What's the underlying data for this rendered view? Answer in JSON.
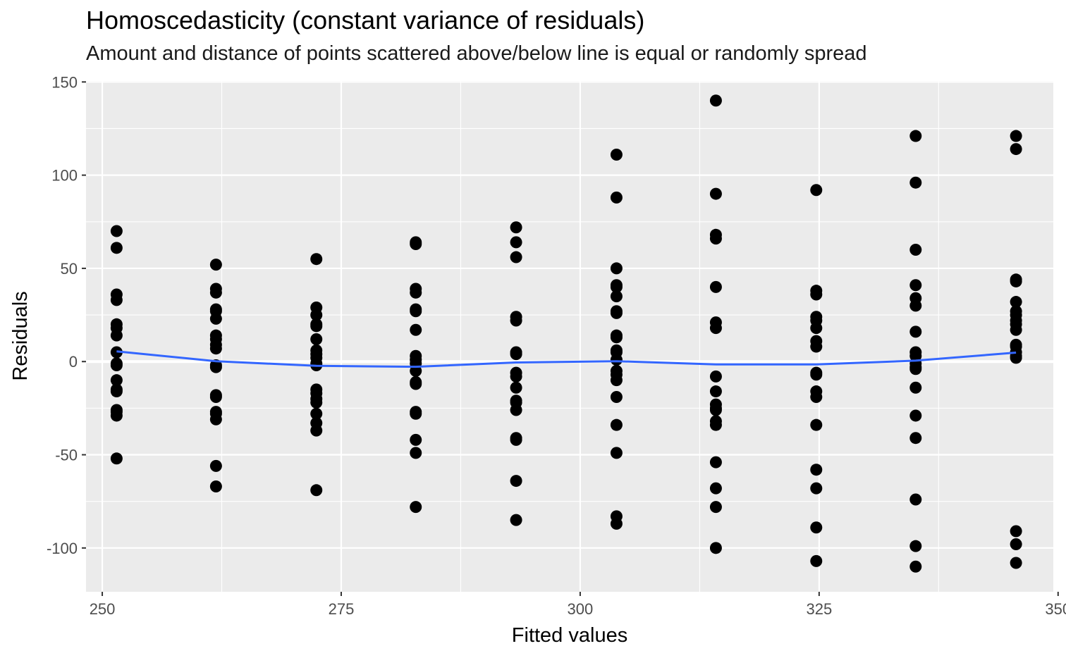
{
  "chart_data": {
    "type": "scatter",
    "title": "Homoscedasticity (constant variance of residuals)",
    "subtitle": "Amount and distance of points scattered above/below line is equal or randomly spread",
    "xlabel": "Fitted values",
    "ylabel": "Residuals",
    "xlim": [
      248.3,
      349.5
    ],
    "ylim": [
      -123.5,
      150.5
    ],
    "x_ticks": [
      250,
      275,
      300,
      325,
      350
    ],
    "y_ticks": [
      150,
      100,
      50,
      0,
      -50,
      -100
    ],
    "x_tick_labels": [
      "250",
      "275",
      "300",
      "325",
      "350"
    ],
    "y_tick_labels": [
      "150",
      "100",
      "50",
      "0",
      "-50",
      "-100"
    ],
    "grid": true,
    "reference_line_y": 0,
    "colors": {
      "panel": "#ebebeb",
      "grid": "#ffffff",
      "points": "#000000",
      "smooth": "#3366ff"
    },
    "points": [
      {
        "x": 251.5,
        "y": [
          70,
          61,
          36,
          33,
          20,
          18,
          14,
          5,
          -1,
          -2,
          -10,
          -15,
          -16,
          -26,
          -27,
          -29,
          -52
        ]
      },
      {
        "x": 261.9,
        "y": [
          52,
          39,
          37,
          28,
          27,
          23,
          14,
          12,
          9,
          7,
          -2,
          -3,
          -18,
          -19,
          -27,
          -28,
          -31,
          -56,
          -67
        ]
      },
      {
        "x": 272.4,
        "y": [
          55,
          29,
          25,
          20,
          19,
          12,
          6,
          4,
          2,
          -1,
          -2,
          -15,
          -17,
          -20,
          -22,
          -28,
          -33,
          -37,
          -69
        ]
      },
      {
        "x": 282.8,
        "y": [
          64,
          63,
          39,
          37,
          28,
          27,
          17,
          3,
          1,
          -1,
          -5,
          -11,
          -12,
          -27,
          -28,
          -42,
          -49,
          -78
        ]
      },
      {
        "x": 293.3,
        "y": [
          72,
          64,
          56,
          24,
          22,
          5,
          4,
          -6,
          -8,
          -14,
          -21,
          -22,
          -26,
          -41,
          -42,
          -64,
          -85
        ]
      },
      {
        "x": 303.8,
        "y": [
          111,
          88,
          50,
          41,
          40,
          35,
          27,
          26,
          14,
          13,
          6,
          5,
          1,
          -5,
          -7,
          -10,
          -19,
          -34,
          -49,
          -83,
          -87
        ]
      },
      {
        "x": 314.2,
        "y": [
          140,
          90,
          68,
          66,
          40,
          21,
          18,
          -8,
          -16,
          -23,
          -25,
          -26,
          -32,
          -34,
          -54,
          -68,
          -78,
          -100
        ]
      },
      {
        "x": 324.7,
        "y": [
          92,
          38,
          36,
          24,
          22,
          18,
          11,
          8,
          -6,
          -7,
          -16,
          -19,
          -34,
          -58,
          -68,
          -89,
          -107
        ]
      },
      {
        "x": 335.1,
        "y": [
          121,
          96,
          60,
          41,
          34,
          30,
          16,
          5,
          3,
          -1,
          -3,
          -4,
          -14,
          -29,
          -41,
          -74,
          -99,
          -110
        ]
      },
      {
        "x": 345.6,
        "y": [
          121,
          114,
          44,
          43,
          32,
          27,
          25,
          22,
          20,
          17,
          9,
          8,
          5,
          3,
          2,
          -91,
          -98,
          -108
        ]
      }
    ],
    "smooth_line": {
      "x": [
        251.5,
        261.9,
        272.4,
        282.8,
        293.3,
        303.8,
        314.2,
        324.7,
        335.1,
        345.6
      ],
      "y": [
        5.5,
        0.2,
        -2.3,
        -2.8,
        -0.5,
        0.2,
        -1.5,
        -1.5,
        0.5,
        4.8
      ]
    }
  }
}
